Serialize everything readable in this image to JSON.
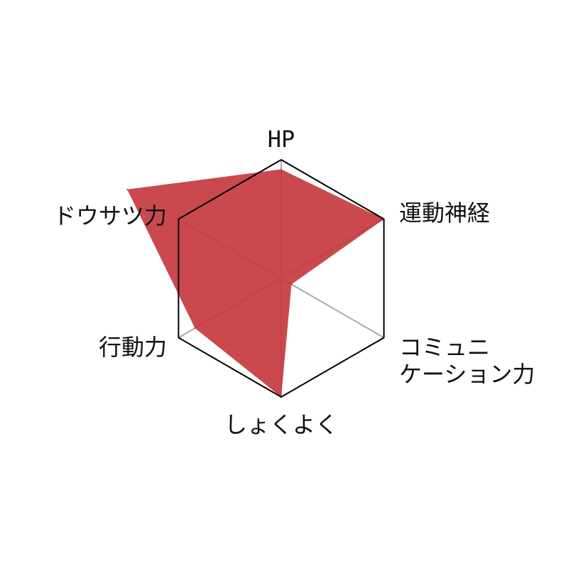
{
  "chart_data": {
    "type": "radar",
    "title": "",
    "axes": [
      {
        "name": "HP",
        "lines": [
          "HP"
        ]
      },
      {
        "name": "運動神経",
        "lines": [
          "運動神経"
        ]
      },
      {
        "name": "コミュニケーション力",
        "lines": [
          "コミュニ",
          "ケーション力"
        ]
      },
      {
        "name": "しょくよく",
        "lines": [
          "しょくよく"
        ]
      },
      {
        "name": "行動力",
        "lines": [
          "行動力"
        ]
      },
      {
        "name": "ドウサツ力",
        "lines": [
          "ドウサツ力"
        ]
      }
    ],
    "range": [
      0,
      100
    ],
    "series": [
      {
        "values": [
          92,
          100,
          10,
          100,
          84,
          150
        ]
      }
    ],
    "grid": true
  },
  "colors": {
    "fill": "#c53a3f",
    "outline": "#000000",
    "spoke": "#aaaaaa"
  }
}
